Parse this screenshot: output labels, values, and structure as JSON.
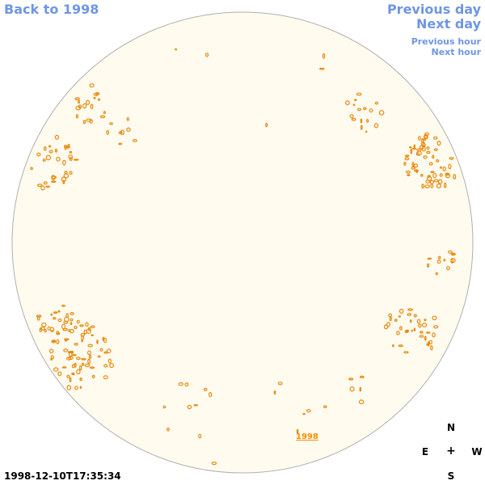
{
  "nav": {
    "back_label": "Back to 1998",
    "prev_day_label": "Previous day",
    "next_day_label": "Next day",
    "prev_hour_label": "Previous hour",
    "next_hour_label": "Next hour"
  },
  "timestamp": "1998-12-10T17:35:34",
  "year_label": "1998",
  "compass": {
    "n": "N",
    "s": "S",
    "e": "E",
    "w": "W",
    "center": "+"
  },
  "colors": {
    "disk_fill": "#fffbef",
    "disk_border": "#b0b0b0",
    "contour": "#e8880a",
    "link": "#6f96e3"
  }
}
